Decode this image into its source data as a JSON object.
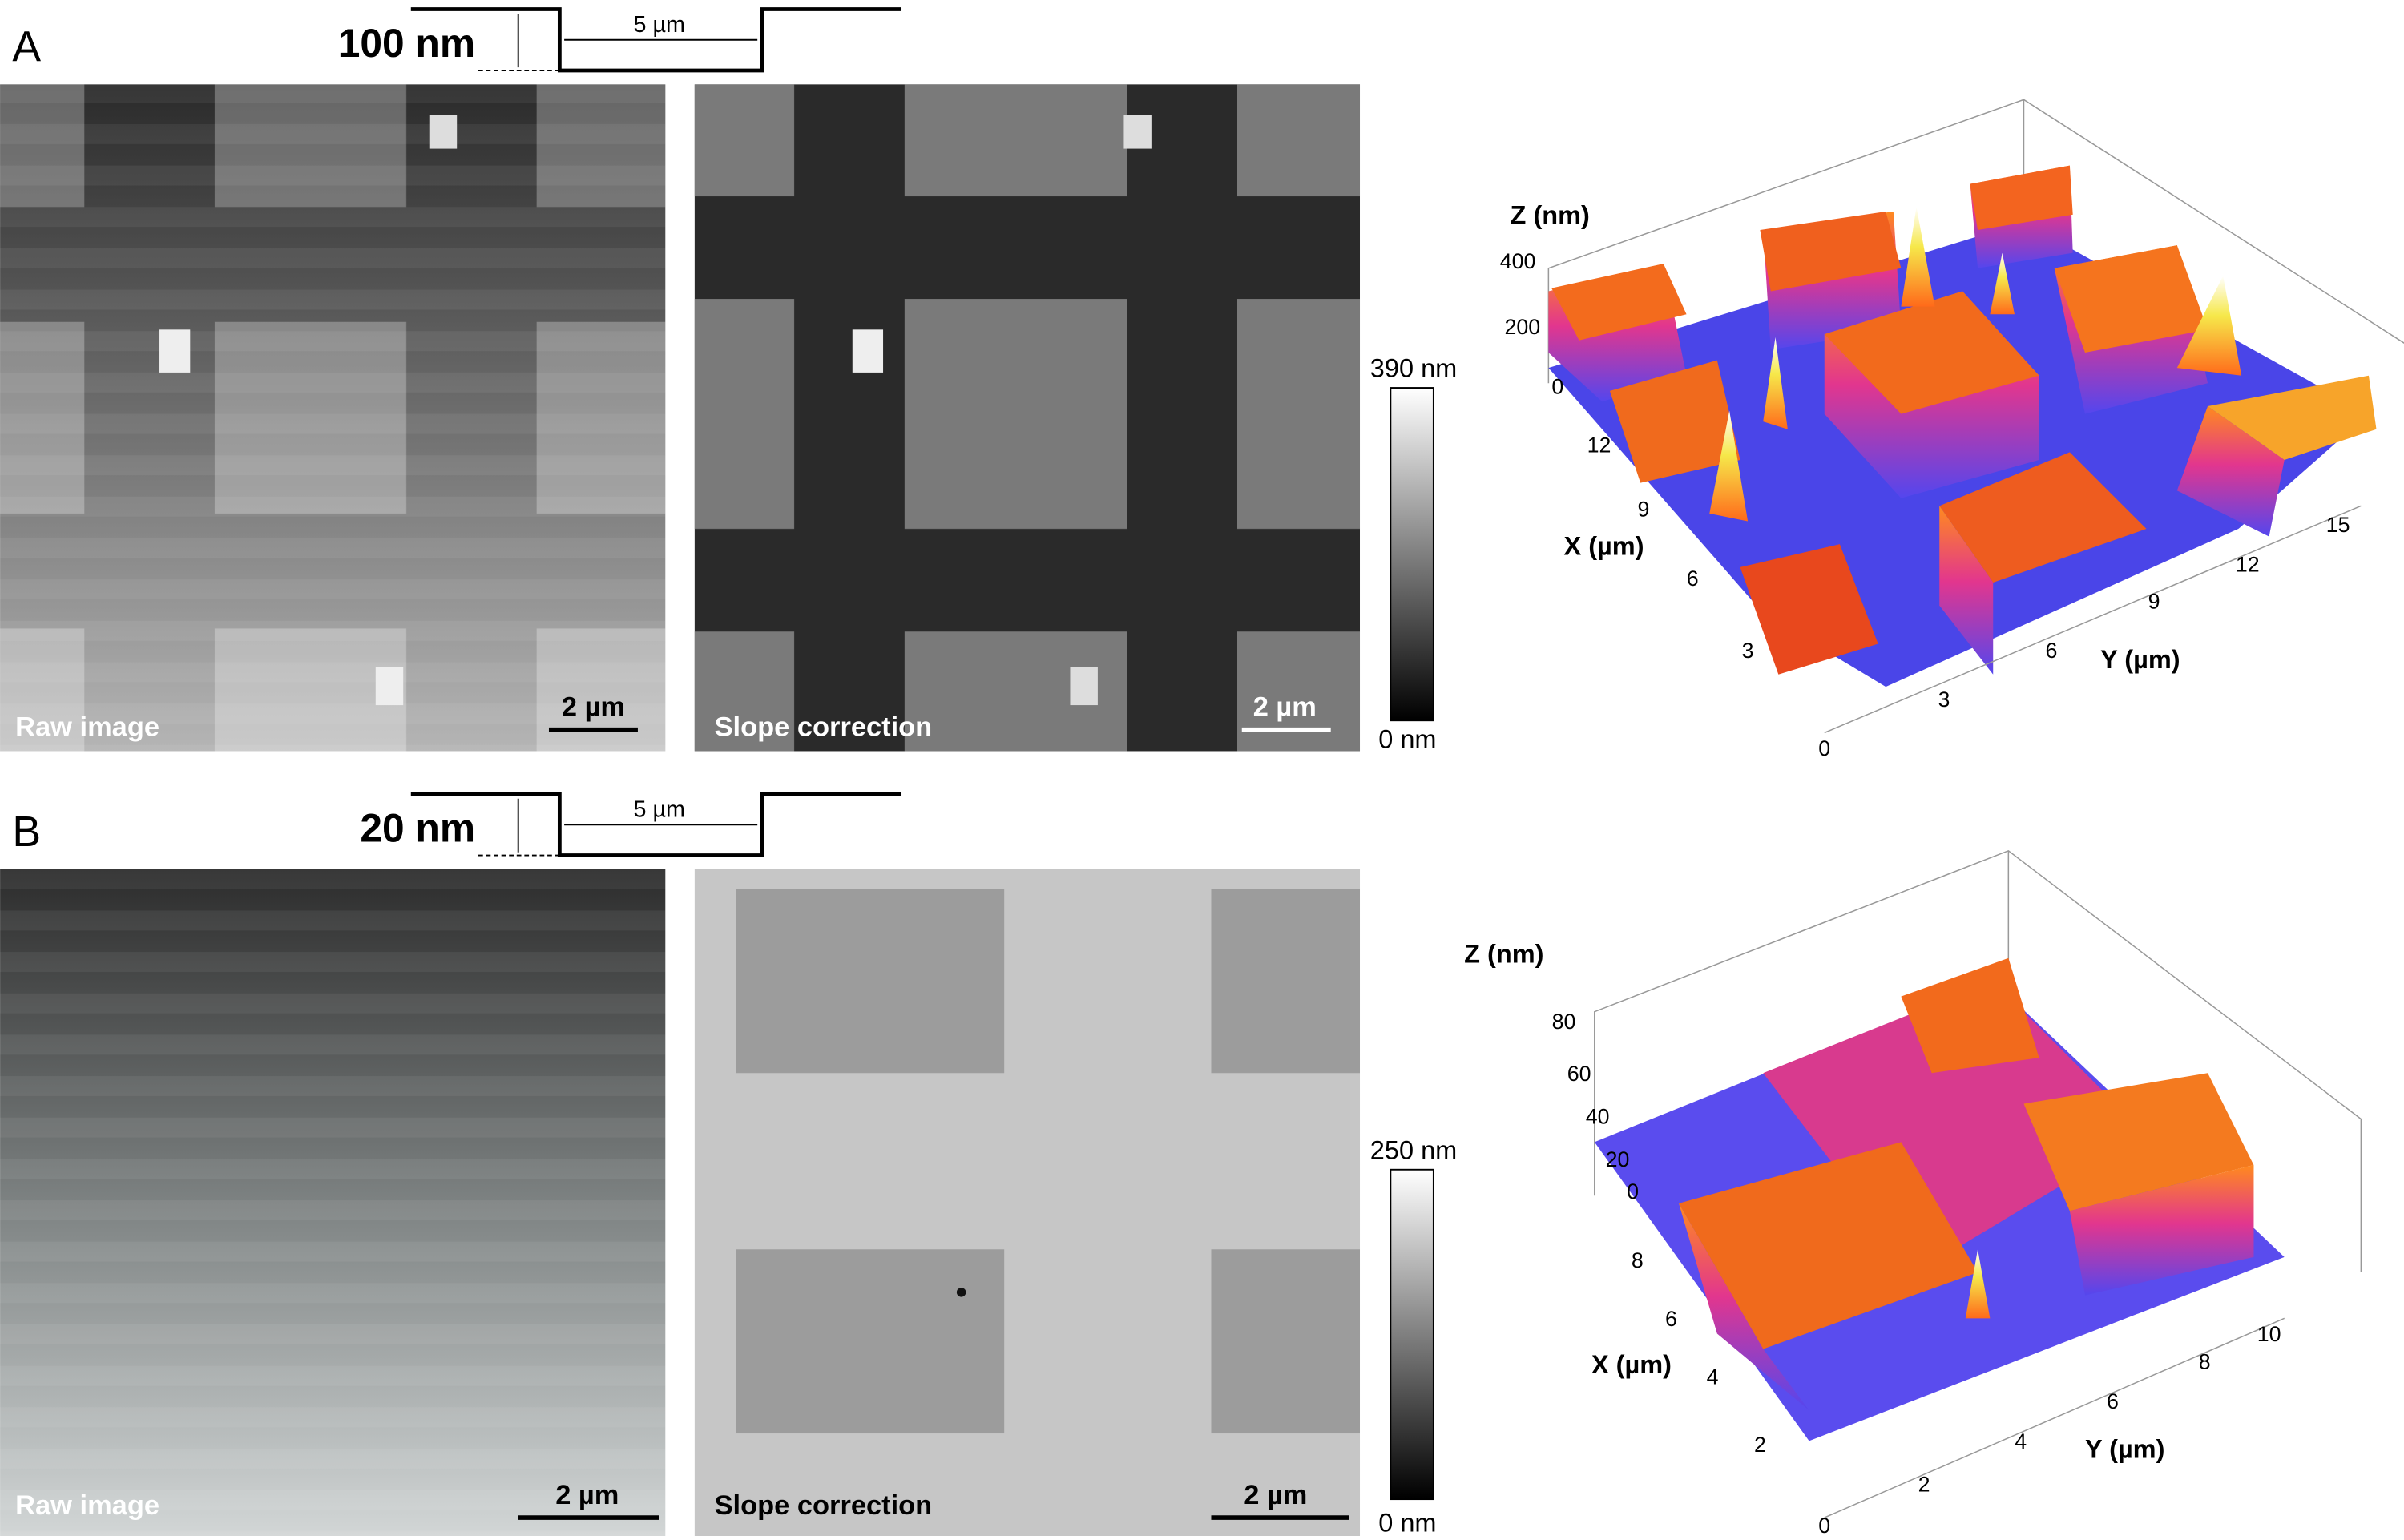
{
  "panels": [
    {
      "label": "A",
      "step_height": "100 nm",
      "pitch": "µm",
      "raw": {
        "label": "Raw image",
        "scale_bar": "2 µm"
      },
      "corrected": {
        "label": "Slope correction",
        "scale_bar": "2 µm"
      },
      "colorbar": {
        "max": "390 nm",
        "min": "0 nm"
      },
      "plot3d": {
        "z_label": "Z (nm)",
        "z_ticks": [
          400,
          200,
          0
        ],
        "x_label": "X (µm)",
        "x_ticks": [
          12,
          9,
          6,
          3,
          0
        ],
        "y_label": "Y (µm)",
        "y_ticks": [
          3,
          6,
          9,
          12,
          15
        ]
      }
    },
    {
      "label": "B",
      "step_height": "20 nm",
      "pitch": "µm",
      "raw": {
        "label": "Raw image",
        "scale_bar": "2 µm"
      },
      "corrected": {
        "label": "Slope correction",
        "scale_bar": "2 µm"
      },
      "colorbar": {
        "max": "250 nm",
        "min": "0 nm"
      },
      "plot3d": {
        "z_label": "Z (nm)",
        "z_ticks": [
          80,
          60,
          40,
          20,
          0
        ],
        "x_label": "X (µm)",
        "x_ticks": [
          8,
          6,
          4,
          2,
          0
        ],
        "y_label": "Y (µm)",
        "y_ticks": [
          2,
          4,
          6,
          8,
          10
        ]
      }
    }
  ],
  "pitch_value": 5
}
